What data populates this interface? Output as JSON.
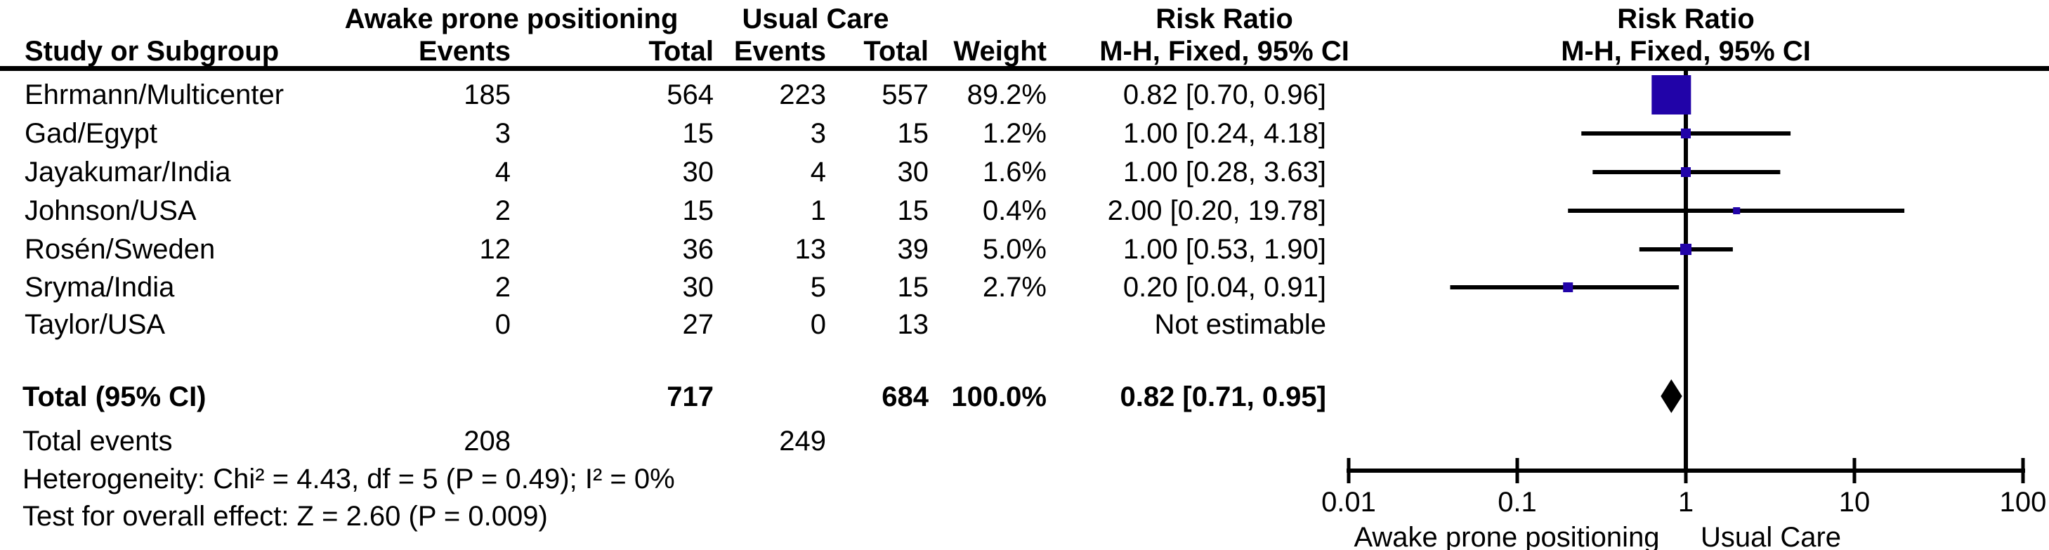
{
  "headers": {
    "group_awake": "Awake prone positioning",
    "group_usual": "Usual Care",
    "study": "Study or Subgroup",
    "events": "Events",
    "total": "Total",
    "weight": "Weight",
    "risk_ratio": "Risk Ratio",
    "method_ci": "M-H, Fixed, 95% CI"
  },
  "total_row": {
    "label": "Total (95% CI)",
    "total_awake": "717",
    "total_usual": "684",
    "weight": "100.0%",
    "rr_text": "0.82 [0.71, 0.95]"
  },
  "total_events_row": {
    "label": "Total events",
    "events_awake": "208",
    "events_usual": "249"
  },
  "footnotes": {
    "heterogeneity": "Heterogeneity: Chi² = 4.43, df = 5 (P = 0.49); I² = 0%",
    "overall": "Test for overall effect: Z = 2.60 (P = 0.009)"
  },
  "axis": {
    "tick_labels": [
      "0.01",
      "0.1",
      "1",
      "10",
      "100"
    ],
    "caption_left": "Awake prone positioning",
    "caption_right": "Usual Care"
  },
  "colors": {
    "marker": "#2103a8",
    "diamond": "#000000",
    "line": "#000000"
  },
  "chart_data": {
    "type": "forest",
    "effect_measure": "Risk Ratio",
    "method": "M-H, Fixed, 95% CI",
    "x_scale": "log10",
    "x_ticks": [
      0.01,
      0.1,
      1,
      10,
      100
    ],
    "x_range": [
      0.01,
      100
    ],
    "no_effect_line": 1,
    "studies": [
      {
        "name": "Ehrmann/Multicenter",
        "events_awake": 185,
        "total_awake": 564,
        "events_usual": 223,
        "total_usual": 557,
        "weight": "89.2%",
        "weight_pct": 89.2,
        "rr": 0.82,
        "ci_low": 0.7,
        "ci_high": 0.96,
        "rr_text": "0.82 [0.70, 0.96]",
        "estimable": true,
        "marker_px": 56
      },
      {
        "name": "Gad/Egypt",
        "events_awake": 3,
        "total_awake": 15,
        "events_usual": 3,
        "total_usual": 15,
        "weight": "1.2%",
        "weight_pct": 1.2,
        "rr": 1.0,
        "ci_low": 0.24,
        "ci_high": 4.18,
        "rr_text": "1.00 [0.24, 4.18]",
        "estimable": true,
        "marker_px": 14
      },
      {
        "name": "Jayakumar/India",
        "events_awake": 4,
        "total_awake": 30,
        "events_usual": 4,
        "total_usual": 30,
        "weight": "1.6%",
        "weight_pct": 1.6,
        "rr": 1.0,
        "ci_low": 0.28,
        "ci_high": 3.63,
        "rr_text": "1.00 [0.28, 3.63]",
        "estimable": true,
        "marker_px": 14
      },
      {
        "name": "Johnson/USA",
        "events_awake": 2,
        "total_awake": 15,
        "events_usual": 1,
        "total_usual": 15,
        "weight": "0.4%",
        "weight_pct": 0.4,
        "rr": 2.0,
        "ci_low": 0.2,
        "ci_high": 19.78,
        "rr_text": "2.00 [0.20, 19.78]",
        "estimable": true,
        "marker_px": 10
      },
      {
        "name": "Rosén/Sweden",
        "events_awake": 12,
        "total_awake": 36,
        "events_usual": 13,
        "total_usual": 39,
        "weight": "5.0%",
        "weight_pct": 5.0,
        "rr": 1.0,
        "ci_low": 0.53,
        "ci_high": 1.9,
        "rr_text": "1.00 [0.53, 1.90]",
        "estimable": true,
        "marker_px": 16
      },
      {
        "name": "Sryma/India",
        "events_awake": 2,
        "total_awake": 30,
        "events_usual": 5,
        "total_usual": 15,
        "weight": "2.7%",
        "weight_pct": 2.7,
        "rr": 0.2,
        "ci_low": 0.04,
        "ci_high": 0.91,
        "rr_text": "0.20 [0.04, 0.91]",
        "estimable": true,
        "marker_px": 14
      },
      {
        "name": "Taylor/USA",
        "events_awake": 0,
        "total_awake": 27,
        "events_usual": 0,
        "total_usual": 13,
        "weight": "",
        "weight_pct": null,
        "rr": null,
        "ci_low": null,
        "ci_high": null,
        "rr_text": "Not estimable",
        "estimable": false,
        "marker_px": 0
      }
    ],
    "total": {
      "rr": 0.82,
      "ci_low": 0.71,
      "ci_high": 0.95
    }
  }
}
